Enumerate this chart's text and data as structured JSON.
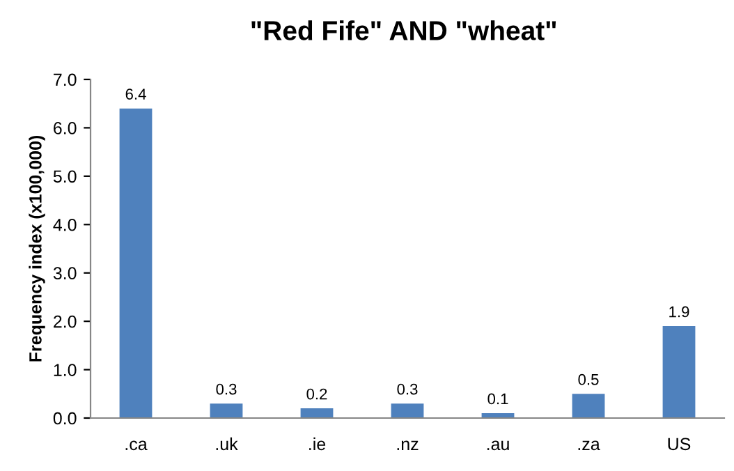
{
  "chart_data": {
    "type": "bar",
    "title": "\"Red Fife\" AND \"wheat\"",
    "ylabel": "Frequency index (x100,000)",
    "categories": [
      ".ca",
      ".uk",
      ".ie",
      ".nz",
      ".au",
      ".za",
      "US"
    ],
    "values": [
      6.4,
      0.3,
      0.2,
      0.3,
      0.1,
      0.5,
      1.9
    ],
    "color": "#4f81bd",
    "data_labels": true,
    "grid": false,
    "legend": false,
    "ylim": [
      0,
      7
    ],
    "yticks": [
      {
        "value": 0,
        "label": "0.0"
      },
      {
        "value": 1,
        "label": "1.0"
      },
      {
        "value": 2,
        "label": "2.0"
      },
      {
        "value": 3,
        "label": "3.0"
      },
      {
        "value": 4,
        "label": "4.0"
      },
      {
        "value": 5,
        "label": "5.0"
      },
      {
        "value": 6,
        "label": "6.0"
      },
      {
        "value": 7,
        "label": "7.0"
      }
    ]
  }
}
